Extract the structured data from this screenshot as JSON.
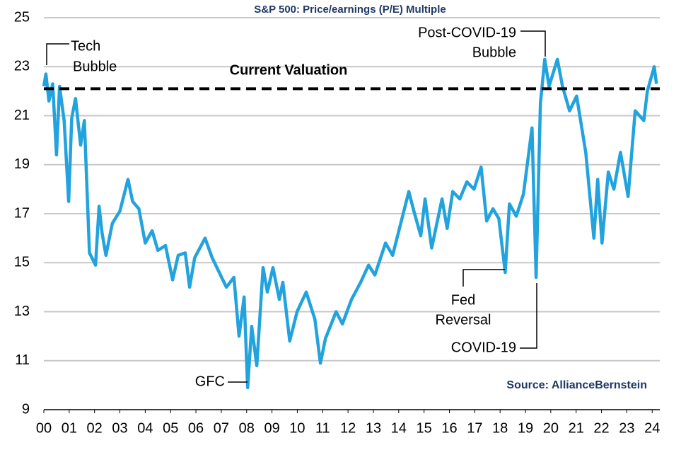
{
  "chart_data": {
    "type": "line",
    "title": "S&P 500: Price/earnings (P/E) Multiple",
    "source": "Source: AllianceBernstein",
    "reference_line": {
      "value": 22.1,
      "label": "Current Valuation"
    },
    "annotations": [
      {
        "lines": [
          "Tech",
          "Bubble"
        ]
      },
      {
        "lines": [
          "Post-COVID-19",
          "Bubble"
        ]
      },
      {
        "lines": [
          "Fed",
          "Reversal"
        ]
      },
      {
        "lines": [
          "COVID-19"
        ]
      },
      {
        "lines": [
          "GFC"
        ]
      }
    ],
    "xlim": [
      0,
      24.3
    ],
    "xticks": [
      {
        "value": 0,
        "label": "00"
      },
      {
        "value": 1,
        "label": "01"
      },
      {
        "value": 2,
        "label": "02"
      },
      {
        "value": 3,
        "label": "03"
      },
      {
        "value": 4,
        "label": "04"
      },
      {
        "value": 5,
        "label": "05"
      },
      {
        "value": 6,
        "label": "06"
      },
      {
        "value": 7,
        "label": "07"
      },
      {
        "value": 8,
        "label": "08"
      },
      {
        "value": 9,
        "label": "09"
      },
      10,
      11,
      12,
      13,
      14,
      15,
      16,
      17,
      18,
      19,
      20,
      21,
      22,
      23,
      24
    ],
    "ylim": [
      9,
      25
    ],
    "yticks": [
      9,
      11,
      13,
      15,
      17,
      19,
      21,
      23,
      25
    ],
    "grid": true,
    "series": [
      {
        "color": "#22a3dd",
        "x": [
          0.0,
          0.08,
          0.2,
          0.35,
          0.5,
          0.62,
          0.8,
          0.98,
          1.1,
          1.25,
          1.45,
          1.6,
          1.8,
          2.04,
          2.18,
          2.3,
          2.45,
          2.7,
          3.0,
          3.32,
          3.5,
          3.75,
          4.0,
          4.27,
          4.5,
          4.8,
          5.08,
          5.3,
          5.58,
          5.75,
          5.95,
          6.36,
          6.64,
          7.2,
          7.5,
          7.7,
          7.9,
          8.04,
          8.2,
          8.4,
          8.65,
          8.82,
          9.04,
          9.29,
          9.43,
          9.7,
          9.99,
          10.35,
          10.69,
          10.91,
          11.11,
          11.53,
          11.78,
          12.14,
          12.5,
          12.81,
          13.06,
          13.48,
          13.76,
          14.4,
          14.6,
          14.87,
          15.04,
          15.3,
          15.71,
          15.91,
          16.13,
          16.41,
          16.69,
          16.97,
          17.25,
          17.47,
          17.72,
          17.95,
          18.2,
          18.37,
          18.64,
          18.92,
          19.26,
          19.42,
          19.59,
          19.76,
          19.93,
          20.26,
          20.46,
          20.74,
          21.02,
          21.38,
          21.7,
          21.85,
          22.02,
          22.27,
          22.49,
          22.75,
          23.05,
          23.33,
          23.67,
          23.81,
          24.08,
          24.17
        ],
        "values": [
          22.2,
          22.7,
          21.6,
          22.3,
          19.4,
          22.2,
          20.8,
          17.5,
          20.9,
          21.7,
          19.8,
          20.8,
          15.4,
          14.9,
          17.3,
          16.2,
          15.3,
          16.6,
          17.1,
          18.4,
          17.5,
          17.2,
          15.8,
          16.3,
          15.5,
          15.7,
          14.3,
          15.3,
          15.4,
          14.0,
          15.2,
          16.0,
          15.2,
          14.0,
          14.4,
          12.0,
          13.6,
          9.9,
          12.4,
          10.8,
          14.8,
          13.8,
          14.8,
          13.5,
          14.2,
          11.8,
          13.0,
          13.8,
          12.7,
          10.9,
          11.9,
          13.0,
          12.5,
          13.5,
          14.2,
          14.9,
          14.5,
          15.8,
          15.3,
          17.9,
          17.1,
          16.1,
          17.6,
          15.6,
          17.6,
          16.4,
          17.9,
          17.6,
          18.3,
          18.0,
          18.9,
          16.7,
          17.2,
          16.8,
          14.6,
          17.4,
          16.9,
          17.8,
          20.5,
          14.4,
          21.5,
          23.3,
          22.2,
          23.3,
          22.2,
          21.2,
          21.8,
          19.5,
          16.0,
          18.4,
          15.8,
          18.7,
          18.0,
          19.5,
          17.7,
          21.2,
          20.8,
          22.0,
          23.0,
          22.3
        ]
      }
    ]
  }
}
